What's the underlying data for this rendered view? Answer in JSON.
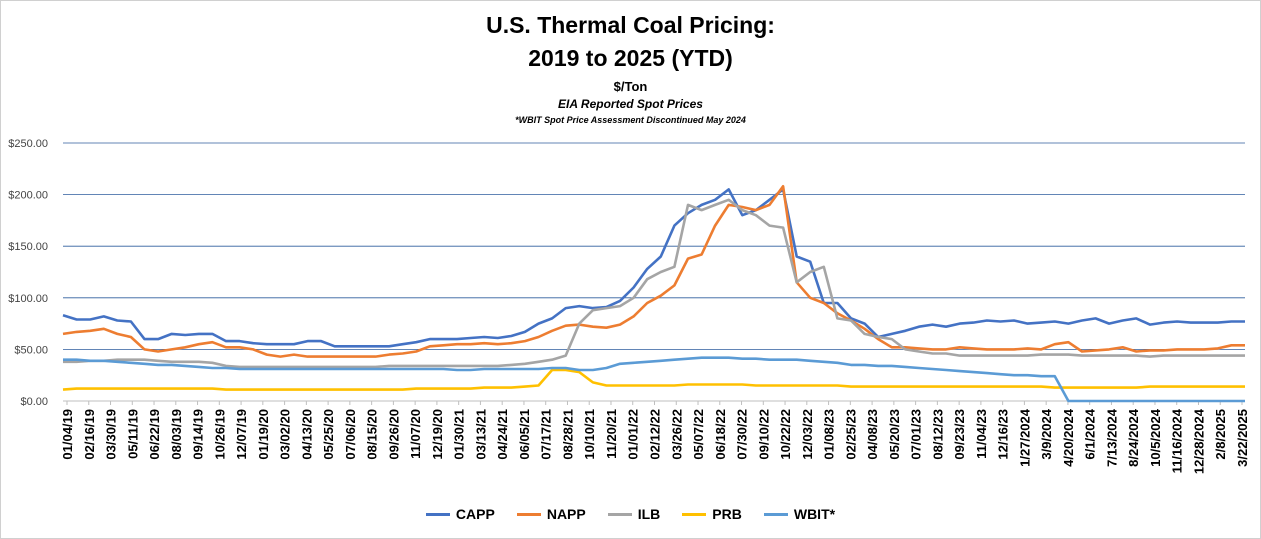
{
  "title_line1": "U.S. Thermal Coal Pricing:",
  "title_line2": "2019 to 2025 (YTD)",
  "unit": "$/Ton",
  "subtitle": "EIA Reported Spot Prices",
  "note": "*WBIT Spot Price Assessment Discontinued May 2024",
  "chart_data": {
    "type": "line",
    "x_tick_labels": [
      "01/04/19",
      "02/16/19",
      "03/30/19",
      "05/11/19",
      "06/22/19",
      "08/03/19",
      "09/14/19",
      "10/26/19",
      "12/07/19",
      "01/19/20",
      "03/02/20",
      "04/13/20",
      "05/25/20",
      "07/06/20",
      "08/15/20",
      "09/26/20",
      "11/07/20",
      "12/19/20",
      "01/30/21",
      "03/13/21",
      "04/24/21",
      "06/05/21",
      "07/17/21",
      "08/28/21",
      "10/10/21",
      "11/20/21",
      "01/01/22",
      "02/12/22",
      "03/26/22",
      "05/07/22",
      "06/18/22",
      "07/30/22",
      "09/10/22",
      "10/22/22",
      "12/03/22",
      "01/08/23",
      "02/25/23",
      "04/08/23",
      "05/20/23",
      "07/01/23",
      "08/12/23",
      "09/23/23",
      "11/04/23",
      "12/16/23",
      "1/27/2024",
      "3/9/2024",
      "4/20/2024",
      "6/1/2024",
      "7/13/2024",
      "8/24/2024",
      "10/5/2024",
      "11/16/2024",
      "12/28/2024",
      "2/8/2025",
      "3/22/2025"
    ],
    "y_tick_labels": [
      "$0.00",
      "$50.00",
      "$100.00",
      "$150.00",
      "$200.00",
      "$250.00"
    ],
    "ylim": [
      0,
      250
    ],
    "grid": "horizontal",
    "legend_position": "bottom",
    "series": [
      {
        "name": "CAPP",
        "color": "#4472c4",
        "values": [
          83,
          79,
          79,
          82,
          78,
          77,
          60,
          60,
          65,
          64,
          65,
          65,
          58,
          58,
          56,
          55,
          55,
          55,
          58,
          58,
          53,
          53,
          53,
          53,
          53,
          55,
          57,
          60,
          60,
          60,
          61,
          62,
          61,
          63,
          67,
          75,
          80,
          90,
          92,
          90,
          91,
          97,
          110,
          128,
          140,
          170,
          182,
          190,
          195,
          205,
          180,
          185,
          195,
          205,
          140,
          135,
          95,
          95,
          80,
          75,
          62,
          65,
          68,
          72,
          74,
          72,
          75,
          76,
          78,
          77,
          78,
          75,
          76,
          77,
          75,
          78,
          80,
          75,
          78,
          80,
          74,
          76,
          77,
          76,
          76,
          76,
          77,
          77
        ]
      },
      {
        "name": "NAPP",
        "color": "#ed7d31",
        "values": [
          65,
          67,
          68,
          70,
          65,
          62,
          50,
          48,
          50,
          52,
          55,
          57,
          52,
          52,
          50,
          45,
          43,
          45,
          43,
          43,
          43,
          43,
          43,
          43,
          45,
          46,
          48,
          53,
          54,
          55,
          55,
          56,
          55,
          56,
          58,
          62,
          68,
          73,
          74,
          72,
          71,
          74,
          82,
          95,
          102,
          112,
          138,
          142,
          170,
          190,
          188,
          185,
          190,
          208,
          115,
          100,
          95,
          85,
          78,
          70,
          60,
          52,
          52,
          51,
          50,
          50,
          52,
          51,
          50,
          50,
          50,
          51,
          50,
          55,
          57,
          48,
          49,
          50,
          52,
          48,
          49,
          49,
          50,
          50,
          50,
          51,
          54,
          54
        ]
      },
      {
        "name": "ILB",
        "color": "#a5a5a5",
        "values": [
          38,
          38,
          39,
          39,
          40,
          40,
          40,
          39,
          38,
          38,
          38,
          37,
          34,
          33,
          33,
          33,
          33,
          33,
          33,
          33,
          33,
          33,
          33,
          33,
          34,
          34,
          34,
          34,
          34,
          34,
          34,
          34,
          34,
          35,
          36,
          38,
          40,
          44,
          75,
          88,
          90,
          92,
          100,
          118,
          125,
          130,
          190,
          185,
          190,
          195,
          185,
          180,
          170,
          168,
          115,
          125,
          130,
          80,
          78,
          65,
          62,
          60,
          50,
          48,
          46,
          46,
          44,
          44,
          44,
          44,
          44,
          44,
          45,
          45,
          45,
          44,
          44,
          44,
          44,
          44,
          43,
          44,
          44,
          44,
          44,
          44,
          44,
          44
        ]
      },
      {
        "name": "PRB",
        "color": "#ffc000",
        "values": [
          11,
          12,
          12,
          12,
          12,
          12,
          12,
          12,
          12,
          12,
          12,
          12,
          11,
          11,
          11,
          11,
          11,
          11,
          11,
          11,
          11,
          11,
          11,
          11,
          11,
          11,
          12,
          12,
          12,
          12,
          12,
          13,
          13,
          13,
          14,
          15,
          30,
          30,
          28,
          18,
          15,
          15,
          15,
          15,
          15,
          15,
          16,
          16,
          16,
          16,
          16,
          15,
          15,
          15,
          15,
          15,
          15,
          15,
          14,
          14,
          14,
          14,
          14,
          14,
          14,
          14,
          14,
          14,
          14,
          14,
          14,
          14,
          14,
          13,
          13,
          13,
          13,
          13,
          13,
          13,
          14,
          14,
          14,
          14,
          14,
          14,
          14,
          14
        ]
      },
      {
        "name": "WBIT*",
        "color": "#5b9bd5",
        "values": [
          40,
          40,
          39,
          39,
          38,
          37,
          36,
          35,
          35,
          34,
          33,
          32,
          32,
          31,
          31,
          31,
          31,
          31,
          31,
          31,
          31,
          31,
          31,
          31,
          31,
          31,
          31,
          31,
          31,
          30,
          30,
          31,
          31,
          31,
          31,
          31,
          32,
          32,
          30,
          30,
          32,
          36,
          37,
          38,
          39,
          40,
          41,
          42,
          42,
          42,
          41,
          41,
          40,
          40,
          40,
          39,
          38,
          37,
          35,
          35,
          34,
          34,
          33,
          32,
          31,
          30,
          29,
          28,
          27,
          26,
          25,
          25,
          24,
          24,
          0,
          0,
          0,
          0,
          0,
          0,
          0,
          0,
          0,
          0,
          0,
          0,
          0,
          0
        ]
      }
    ]
  }
}
